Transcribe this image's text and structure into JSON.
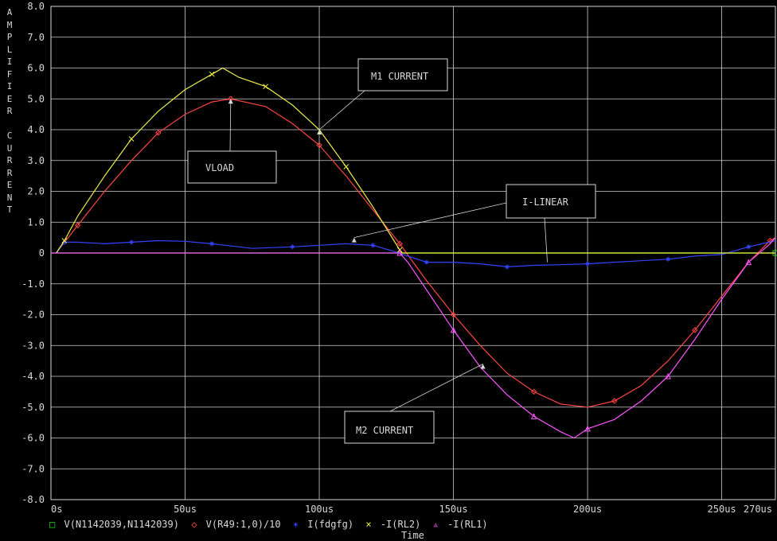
{
  "chart_data": {
    "type": "line",
    "ylabel": "AMPLIFIER CURRENT",
    "xlabel": "Time",
    "xlim": [
      0,
      270
    ],
    "ylim": [
      -8,
      8
    ],
    "grid": true,
    "x_ticks": [
      0,
      50,
      100,
      150,
      200,
      250,
      270
    ],
    "x_tick_labels": [
      "0s",
      "50us",
      "100us",
      "150us",
      "200us",
      "250us",
      "270us"
    ],
    "y_ticks": [
      8,
      7,
      6,
      5,
      4,
      3,
      2,
      1,
      0,
      -1,
      -2,
      -3,
      -4,
      -5,
      -6,
      -7,
      -8
    ],
    "y_tick_labels": [
      "8.0",
      "7.0",
      "6.0",
      "5.0",
      "4.0",
      "3.0",
      "2.0",
      "1.0",
      "0",
      "-1.0",
      "-2.0",
      "-3.0",
      "-4.0",
      "-5.0",
      "-6.0",
      "-7.0",
      "-8.0"
    ],
    "series": [
      {
        "name": "V(N1142039,N1142039)",
        "color": "#22dd22",
        "marker": "square",
        "x": [
          0,
          270
        ],
        "y": [
          0,
          0
        ]
      },
      {
        "name": "V(R49:1,0)/10",
        "color": "#ff4444",
        "marker": "diamond",
        "x": [
          2,
          10,
          20,
          30,
          40,
          50,
          60,
          67,
          80,
          90,
          100,
          110,
          120,
          130,
          135,
          140,
          150,
          160,
          170,
          180,
          190,
          200,
          210,
          220,
          230,
          240,
          250,
          260,
          268,
          270
        ],
        "y": [
          0,
          0.9,
          2.0,
          3.0,
          3.9,
          4.5,
          4.9,
          5.0,
          4.75,
          4.2,
          3.5,
          2.5,
          1.4,
          0.3,
          -0.3,
          -0.9,
          -2.0,
          -3.0,
          -3.9,
          -4.5,
          -4.9,
          -5.0,
          -4.8,
          -4.3,
          -3.5,
          -2.5,
          -1.4,
          -0.3,
          0.4,
          0.5
        ]
      },
      {
        "name": "I(fdgfg)",
        "color": "#3344ff",
        "marker": "star",
        "x": [
          2,
          5,
          10,
          20,
          30,
          40,
          50,
          60,
          65,
          75,
          90,
          100,
          110,
          120,
          128,
          133,
          140,
          150,
          160,
          170,
          180,
          190,
          200,
          210,
          220,
          230,
          240,
          250,
          260,
          270
        ],
        "y": [
          0,
          0.35,
          0.35,
          0.3,
          0.35,
          0.4,
          0.38,
          0.3,
          0.25,
          0.15,
          0.2,
          0.25,
          0.3,
          0.25,
          0.05,
          -0.1,
          -0.3,
          -0.3,
          -0.35,
          -0.45,
          -0.4,
          -0.38,
          -0.35,
          -0.3,
          -0.25,
          -0.2,
          -0.1,
          -0.05,
          0.2,
          0.4
        ]
      },
      {
        "name": "-I(RL2)",
        "color": "#eeee44",
        "marker": "x",
        "x": [
          2,
          5,
          10,
          20,
          30,
          40,
          50,
          60,
          64,
          70,
          80,
          90,
          100,
          110,
          120,
          125,
          130,
          131,
          270
        ],
        "y": [
          0,
          0.4,
          1.2,
          2.5,
          3.7,
          4.6,
          5.3,
          5.8,
          6.0,
          5.7,
          5.4,
          4.8,
          4.0,
          2.8,
          1.5,
          0.8,
          0.1,
          0,
          0
        ]
      },
      {
        "name": "-I(RL1)",
        "color": "#ff55ff",
        "marker": "triangle",
        "x": [
          0,
          130,
          133,
          140,
          150,
          160,
          170,
          180,
          190,
          195,
          200,
          210,
          220,
          230,
          240,
          250,
          260,
          268,
          270
        ],
        "y": [
          0,
          0,
          -0.3,
          -1.2,
          -2.5,
          -3.7,
          -4.6,
          -5.3,
          -5.8,
          -6.0,
          -5.7,
          -5.4,
          -4.8,
          -4.0,
          -2.8,
          -1.5,
          -0.3,
          0.3,
          0.5
        ]
      }
    ],
    "annotations": [
      {
        "text": "M1 CURRENT",
        "target": [
          100,
          4.0
        ]
      },
      {
        "text": "VLOAD",
        "target": [
          67,
          5.0
        ]
      },
      {
        "text": "I-LINEAR",
        "target": [
          113,
          0.5
        ]
      },
      {
        "text": "I-LINEAR",
        "target": [
          185,
          -0.3
        ]
      },
      {
        "text": "M2 CURRENT",
        "target": [
          161,
          -3.6
        ]
      }
    ]
  }
}
